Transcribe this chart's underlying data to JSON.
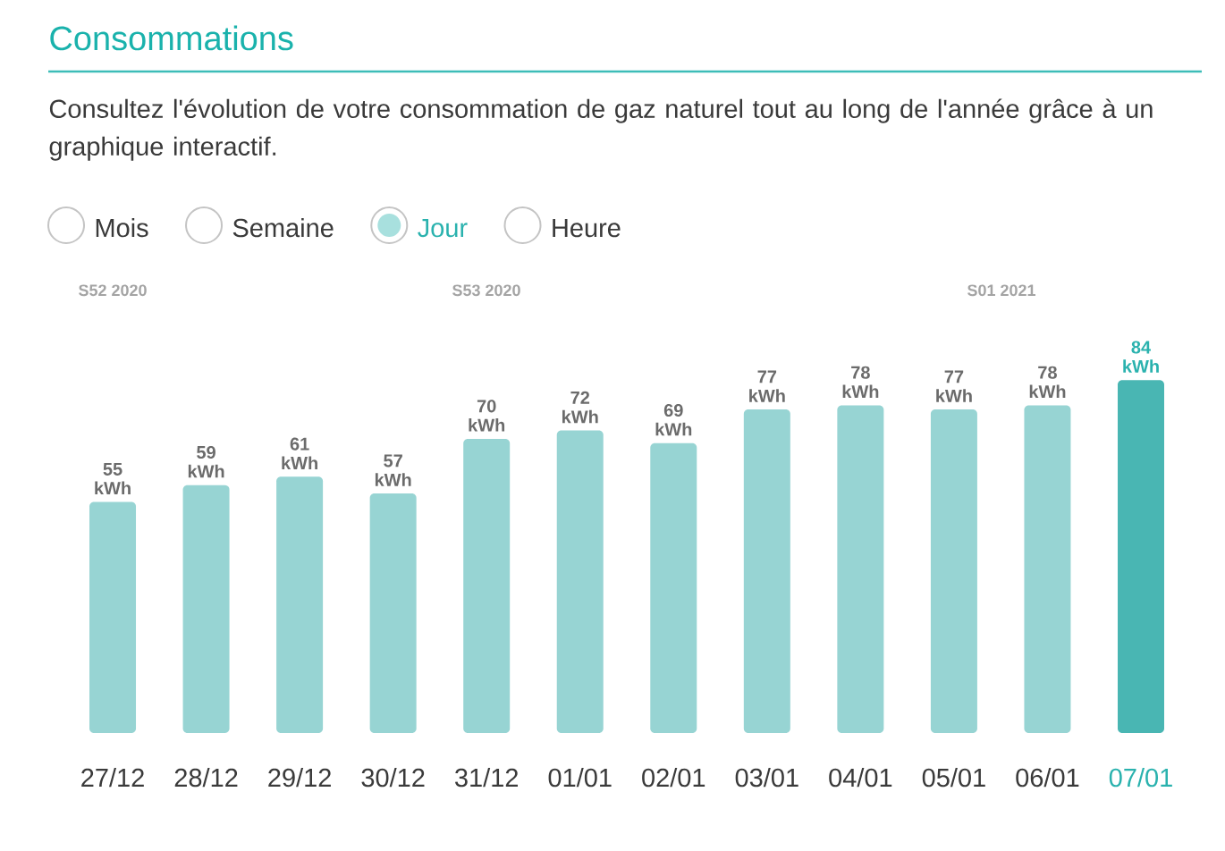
{
  "chart_data": {
    "type": "bar",
    "title": "Consommations",
    "subtitle": "Consultez l'évolution de votre consommation de gaz naturel tout au long de l'année grâce à un graphique interactif.",
    "categories": [
      "27/12",
      "28/12",
      "29/12",
      "30/12",
      "31/12",
      "01/01",
      "02/01",
      "03/01",
      "04/01",
      "05/01",
      "06/01",
      "07/01"
    ],
    "values": [
      55,
      59,
      61,
      57,
      70,
      72,
      69,
      77,
      78,
      77,
      78,
      84
    ],
    "value_labels": [
      "55 kWh",
      "59 kWh",
      "61 kWh",
      "57 kWh",
      "70 kWh",
      "72 kWh",
      "69 kWh",
      "77 kWh",
      "78 kWh",
      "77 kWh",
      "78 kWh",
      "84 kWh"
    ],
    "colors": [
      "#97d4d3",
      "#97d4d3",
      "#97d4d3",
      "#97d4d3",
      "#97d4d3",
      "#97d4d3",
      "#97d4d3",
      "#97d4d3",
      "#97d4d3",
      "#97d4d3",
      "#97d4d3",
      "#49b6b3"
    ],
    "annotations": [
      "Mois",
      "Semaine",
      "Jour",
      "Heure",
      "S52 2020",
      "S53 2020",
      "S01 2021"
    ]
  }
}
